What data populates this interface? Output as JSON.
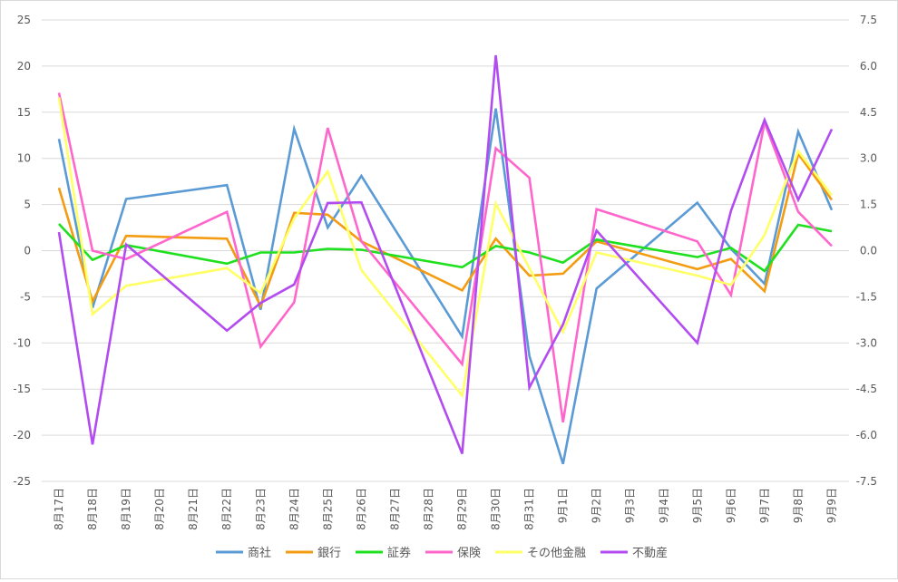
{
  "chart_data": {
    "type": "line",
    "categories": [
      "8月17日",
      "8月18日",
      "8月19日",
      "8月20日",
      "8月21日",
      "8月22日",
      "8月23日",
      "8月24日",
      "8月25日",
      "8月26日",
      "8月27日",
      "8月28日",
      "8月29日",
      "8月30日",
      "8月31日",
      "9月1日",
      "9月2日",
      "9月3日",
      "9月4日",
      "9月5日",
      "9月6日",
      "9月7日",
      "9月8日",
      "9月9日"
    ],
    "y_left": {
      "min": -25,
      "max": 25,
      "step": 5,
      "ticks": [
        "25",
        "20",
        "15",
        "10",
        "5",
        "0",
        "-5",
        "-10",
        "-15",
        "-20",
        "-25"
      ]
    },
    "y_right": {
      "min": -7.5,
      "max": 7.5,
      "step": 1.5,
      "ticks": [
        "7.5",
        "6.0",
        "4.5",
        "3.0",
        "1.5",
        "0.0",
        "-1.5",
        "-3.0",
        "-4.5",
        "-6.0",
        "-7.5"
      ]
    },
    "grid": true,
    "legend_position": "bottom",
    "series": [
      {
        "name": "商社",
        "color": "#5b9bd5",
        "axis": "left",
        "values": [
          12.1,
          -6.2,
          5.6,
          null,
          null,
          7.1,
          -6.4,
          13.2,
          2.5,
          8.1,
          null,
          null,
          -9.3,
          15.4,
          -11.4,
          -23.1,
          -4.1,
          null,
          null,
          5.2,
          0.2,
          -3.6,
          12.9,
          4.4
        ]
      },
      {
        "name": "銀行",
        "color": "#f39c12",
        "axis": "left",
        "values": [
          6.8,
          -5.5,
          1.6,
          null,
          null,
          1.3,
          -6.0,
          4.1,
          3.9,
          1.0,
          null,
          null,
          -4.3,
          1.3,
          -2.7,
          -2.5,
          1.0,
          null,
          null,
          -2.0,
          -0.9,
          -4.4,
          10.5,
          5.5
        ]
      },
      {
        "name": "証券",
        "color": "#1ee01e",
        "axis": "left",
        "values": [
          2.9,
          -1.0,
          0.6,
          null,
          null,
          -1.4,
          -0.2,
          -0.2,
          0.2,
          0.1,
          null,
          null,
          -1.8,
          0.5,
          -0.2,
          -1.3,
          1.2,
          null,
          null,
          -0.7,
          0.3,
          -2.2,
          2.8,
          2.1
        ]
      },
      {
        "name": "保険",
        "color": "#ff66cc",
        "axis": "left",
        "values": [
          17.1,
          0.0,
          -0.9,
          null,
          null,
          4.2,
          -10.4,
          -5.6,
          13.3,
          1.0,
          null,
          null,
          -12.3,
          11.1,
          7.9,
          -18.6,
          4.5,
          null,
          null,
          1.0,
          -4.8,
          13.9,
          4.2,
          0.5
        ]
      },
      {
        "name": "その他金融",
        "color": "#ffff66",
        "axis": "left",
        "values": [
          16.6,
          -6.9,
          -3.8,
          null,
          null,
          -1.9,
          -4.6,
          3.5,
          8.6,
          -2.1,
          null,
          null,
          -15.7,
          5.1,
          -1.9,
          -8.8,
          -0.2,
          null,
          null,
          -2.7,
          -3.7,
          1.7,
          10.8,
          6.0
        ]
      },
      {
        "name": "不動産",
        "color": "#b24cf0",
        "axis": "right",
        "values": [
          0.6,
          -6.3,
          0.2,
          null,
          null,
          -2.6,
          -1.7,
          -1.1,
          1.55,
          1.57,
          null,
          null,
          -6.6,
          6.35,
          -4.45,
          -2.4,
          0.65,
          null,
          null,
          -3.0,
          1.3,
          4.25,
          1.65,
          3.95
        ]
      }
    ]
  }
}
